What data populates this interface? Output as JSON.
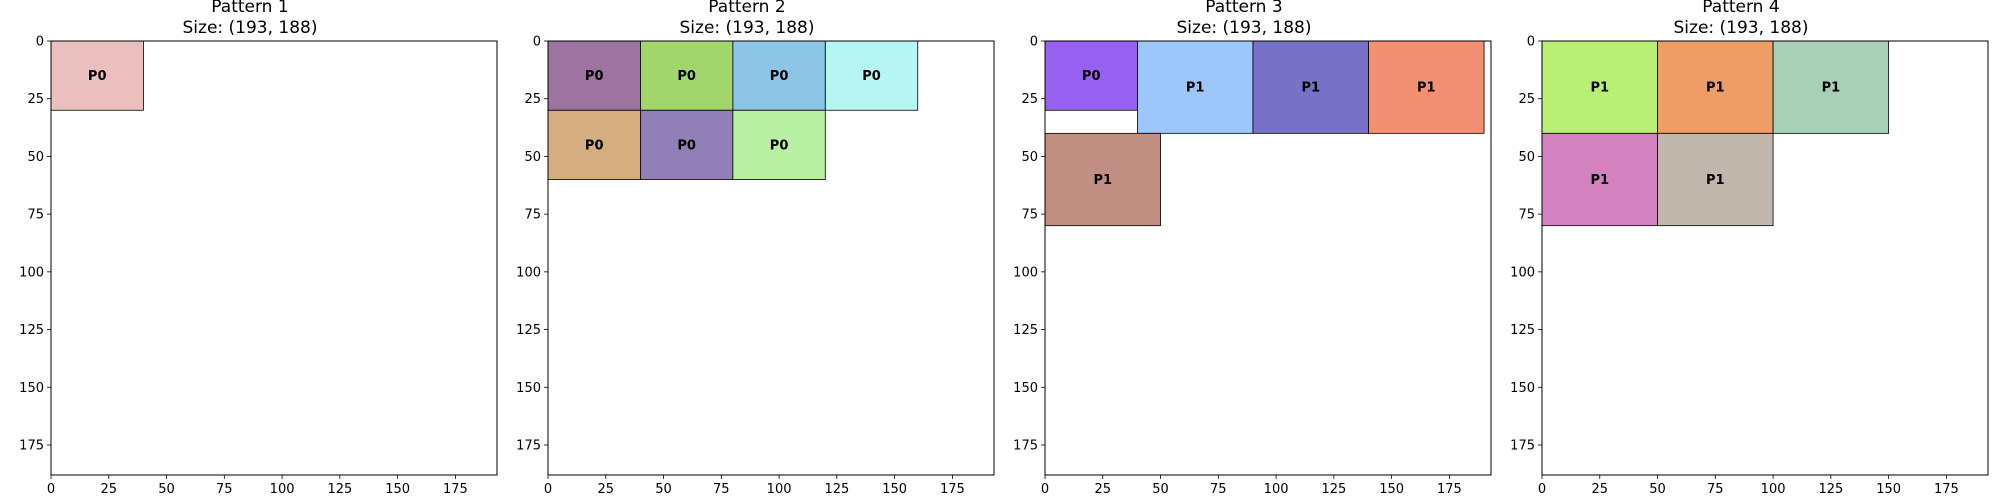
{
  "chart_data": [
    {
      "type": "rectangle-packing",
      "title": "Pattern 1",
      "subtitle": "Size: (193, 188)",
      "xlim": [
        0,
        193
      ],
      "ylim": [
        188,
        0
      ],
      "xticks": [
        0,
        25,
        50,
        75,
        100,
        125,
        150,
        175
      ],
      "yticks": [
        0,
        25,
        50,
        75,
        100,
        125,
        150,
        175
      ],
      "rectangles": [
        {
          "x": 0,
          "y": 0,
          "w": 40,
          "h": 30,
          "label": "P0",
          "color": "#e9b4b4"
        }
      ]
    },
    {
      "type": "rectangle-packing",
      "title": "Pattern 2",
      "subtitle": "Size: (193, 188)",
      "xlim": [
        0,
        193
      ],
      "ylim": [
        188,
        0
      ],
      "xticks": [
        0,
        25,
        50,
        75,
        100,
        125,
        150,
        175
      ],
      "yticks": [
        0,
        25,
        50,
        75,
        100,
        125,
        150,
        175
      ],
      "rectangles": [
        {
          "x": 0,
          "y": 0,
          "w": 40,
          "h": 30,
          "label": "P0",
          "color": "#8d5a8f"
        },
        {
          "x": 40,
          "y": 0,
          "w": 40,
          "h": 30,
          "label": "P0",
          "color": "#93ce54"
        },
        {
          "x": 80,
          "y": 0,
          "w": 40,
          "h": 30,
          "label": "P0",
          "color": "#78bbe0"
        },
        {
          "x": 120,
          "y": 0,
          "w": 40,
          "h": 30,
          "label": "P0",
          "color": "#a9f4f0"
        },
        {
          "x": 0,
          "y": 30,
          "w": 40,
          "h": 30,
          "label": "P0",
          "color": "#cda06b"
        },
        {
          "x": 40,
          "y": 30,
          "w": 40,
          "h": 30,
          "label": "P0",
          "color": "#7e6aab"
        },
        {
          "x": 80,
          "y": 30,
          "w": 40,
          "h": 30,
          "label": "P0",
          "color": "#aaee90"
        }
      ]
    },
    {
      "type": "rectangle-packing",
      "title": "Pattern 3",
      "subtitle": "Size: (193, 188)",
      "xlim": [
        0,
        193
      ],
      "ylim": [
        188,
        0
      ],
      "xticks": [
        0,
        25,
        50,
        75,
        100,
        125,
        150,
        175
      ],
      "yticks": [
        0,
        25,
        50,
        75,
        100,
        125,
        150,
        175
      ],
      "rectangles": [
        {
          "x": 0,
          "y": 0,
          "w": 40,
          "h": 30,
          "label": "P0",
          "color": "#8544ef"
        },
        {
          "x": 40,
          "y": 0,
          "w": 50,
          "h": 40,
          "label": "P1",
          "color": "#8bbcfc"
        },
        {
          "x": 90,
          "y": 0,
          "w": 50,
          "h": 40,
          "label": "P1",
          "color": "#5f59be"
        },
        {
          "x": 140,
          "y": 0,
          "w": 50,
          "h": 40,
          "label": "P1",
          "color": "#f17d5a"
        },
        {
          "x": 0,
          "y": 40,
          "w": 50,
          "h": 40,
          "label": "P1",
          "color": "#b67b6b"
        }
      ]
    },
    {
      "type": "rectangle-packing",
      "title": "Pattern 4",
      "subtitle": "Size: (193, 188)",
      "xlim": [
        0,
        193
      ],
      "ylim": [
        188,
        0
      ],
      "xticks": [
        0,
        25,
        50,
        75,
        100,
        125,
        150,
        175
      ],
      "yticks": [
        0,
        25,
        50,
        75,
        100,
        125,
        150,
        175
      ],
      "rectangles": [
        {
          "x": 0,
          "y": 0,
          "w": 50,
          "h": 40,
          "label": "P1",
          "color": "#acec5c"
        },
        {
          "x": 50,
          "y": 0,
          "w": 50,
          "h": 40,
          "label": "P1",
          "color": "#ec8c4c"
        },
        {
          "x": 100,
          "y": 0,
          "w": 50,
          "h": 40,
          "label": "P1",
          "color": "#98c8aa"
        },
        {
          "x": 0,
          "y": 40,
          "w": 50,
          "h": 40,
          "label": "P1",
          "color": "#cb6cb4"
        },
        {
          "x": 50,
          "y": 40,
          "w": 50,
          "h": 40,
          "label": "P1",
          "color": "#b7aa9f"
        }
      ]
    }
  ]
}
